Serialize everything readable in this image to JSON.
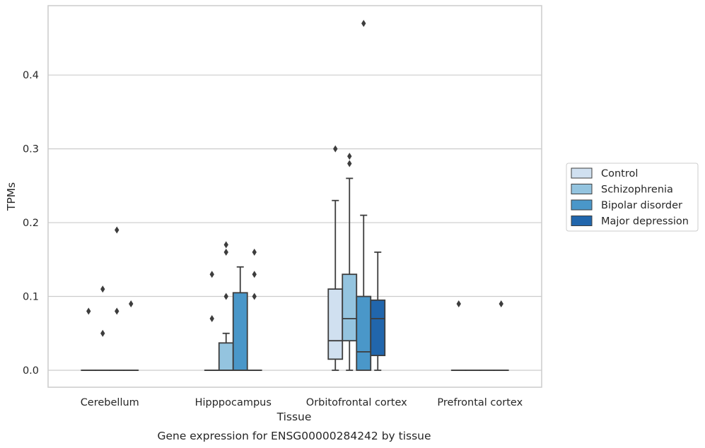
{
  "chart_data": {
    "type": "box",
    "caption": "Gene expression for ENSG00000284242 by tissue",
    "xlabel": "Tissue",
    "ylabel": "TPMs",
    "ylim": [
      -0.023,
      0.494
    ],
    "yticks": [
      "0.0",
      "0.1",
      "0.2",
      "0.3",
      "0.4"
    ],
    "grid": "horizontal",
    "legend_position": "right",
    "categories": [
      "Cerebellum",
      "Hipppocampus",
      "Orbitofrontal cortex",
      "Prefrontal cortex"
    ],
    "groups": [
      {
        "name": "Control",
        "color": "#d0e0f0"
      },
      {
        "name": "Schizophrenia",
        "color": "#94c4df"
      },
      {
        "name": "Bipolar disorder",
        "color": "#4a97c9"
      },
      {
        "name": "Major depression",
        "color": "#2166ac"
      }
    ],
    "boxes": [
      {
        "category": 0,
        "group": 0,
        "q1": 0,
        "median": 0,
        "q3": 0,
        "wlo": 0,
        "whi": 0,
        "outliers": [
          0.08
        ]
      },
      {
        "category": 0,
        "group": 1,
        "q1": 0,
        "median": 0,
        "q3": 0,
        "wlo": 0,
        "whi": 0,
        "outliers": [
          0.05,
          0.11
        ]
      },
      {
        "category": 0,
        "group": 2,
        "q1": 0,
        "median": 0,
        "q3": 0,
        "wlo": 0,
        "whi": 0,
        "outliers": [
          0.08,
          0.19
        ]
      },
      {
        "category": 0,
        "group": 3,
        "q1": 0,
        "median": 0,
        "q3": 0,
        "wlo": 0,
        "whi": 0,
        "outliers": [
          0.09
        ]
      },
      {
        "category": 1,
        "group": 0,
        "q1": 0,
        "median": 0,
        "q3": 0,
        "wlo": 0,
        "whi": 0,
        "outliers": [
          0.07,
          0.13
        ]
      },
      {
        "category": 1,
        "group": 1,
        "q1": 0,
        "median": 0,
        "q3": 0.037,
        "wlo": 0,
        "whi": 0.05,
        "outliers": [
          0.1,
          0.16,
          0.17
        ]
      },
      {
        "category": 1,
        "group": 2,
        "q1": 0,
        "median": 0,
        "q3": 0.105,
        "wlo": 0,
        "whi": 0.14,
        "outliers": []
      },
      {
        "category": 1,
        "group": 3,
        "q1": 0,
        "median": 0,
        "q3": 0,
        "wlo": 0,
        "whi": 0,
        "outliers": [
          0.1,
          0.13,
          0.16
        ]
      },
      {
        "category": 2,
        "group": 0,
        "q1": 0.015,
        "median": 0.04,
        "q3": 0.11,
        "wlo": 0,
        "whi": 0.23,
        "outliers": [
          0.3
        ]
      },
      {
        "category": 2,
        "group": 1,
        "q1": 0.04,
        "median": 0.07,
        "q3": 0.13,
        "wlo": 0,
        "whi": 0.26,
        "outliers": [
          0.28,
          0.29
        ]
      },
      {
        "category": 2,
        "group": 2,
        "q1": 0,
        "median": 0.025,
        "q3": 0.1,
        "wlo": 0,
        "whi": 0.21,
        "outliers": [
          0.47
        ]
      },
      {
        "category": 2,
        "group": 3,
        "q1": 0.02,
        "median": 0.07,
        "q3": 0.095,
        "wlo": 0,
        "whi": 0.16,
        "outliers": []
      },
      {
        "category": 3,
        "group": 0,
        "q1": 0,
        "median": 0,
        "q3": 0,
        "wlo": 0,
        "whi": 0,
        "outliers": [
          0.09
        ]
      },
      {
        "category": 3,
        "group": 1,
        "q1": 0,
        "median": 0,
        "q3": 0,
        "wlo": 0,
        "whi": 0,
        "outliers": []
      },
      {
        "category": 3,
        "group": 2,
        "q1": 0,
        "median": 0,
        "q3": 0,
        "wlo": 0,
        "whi": 0,
        "outliers": []
      },
      {
        "category": 3,
        "group": 3,
        "q1": 0,
        "median": 0,
        "q3": 0,
        "wlo": 0,
        "whi": 0,
        "outliers": [
          0.09
        ]
      }
    ]
  }
}
